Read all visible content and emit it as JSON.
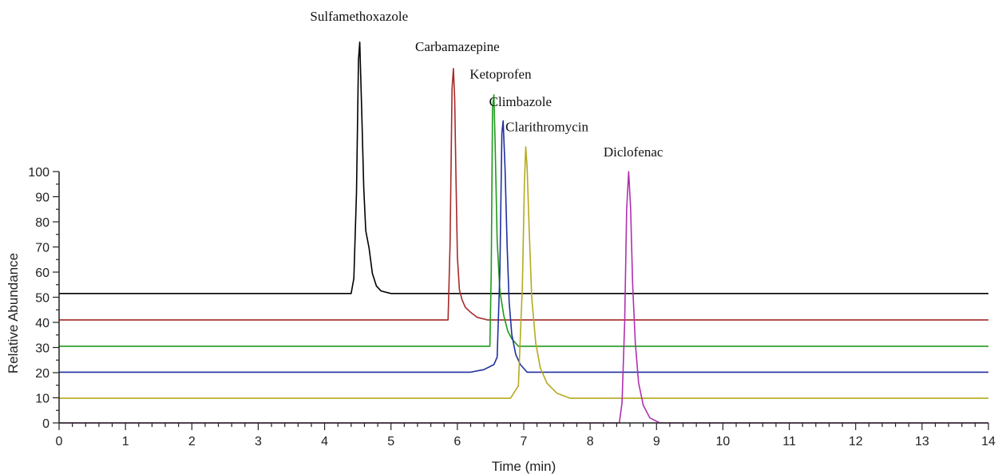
{
  "chart_data": {
    "type": "line",
    "xlabel": "Time (min)",
    "ylabel": "Relative Abundance",
    "xlim": [
      0,
      14
    ],
    "ylim": [
      0,
      100
    ],
    "x_ticks": [
      0,
      1,
      2,
      3,
      4,
      5,
      6,
      7,
      8,
      9,
      10,
      11,
      12,
      13,
      14
    ],
    "y_ticks": [
      0,
      10,
      20,
      30,
      40,
      50,
      60,
      70,
      80,
      90,
      100
    ],
    "grid": false,
    "series": [
      {
        "name": "Sulfamethoxazole",
        "color": "#000000",
        "baseline": 51.5,
        "x": [
          0,
          4.4,
          4.44,
          4.48,
          4.51,
          4.53,
          4.56,
          4.59,
          4.62,
          4.67,
          4.72,
          4.78,
          4.85,
          5.0,
          14
        ],
        "delta": [
          0,
          0,
          6,
          40,
          93,
          100,
          72,
          42,
          25,
          18,
          8,
          3,
          1,
          0,
          0
        ]
      },
      {
        "name": "Carbamazepine",
        "color": "#a52a2a",
        "baseline": 41.0,
        "x": [
          0,
          5.86,
          5.89,
          5.92,
          5.94,
          5.96,
          5.98,
          6.0,
          6.03,
          6.07,
          6.12,
          6.2,
          6.3,
          6.45,
          14
        ],
        "delta": [
          0,
          0,
          30,
          92,
          100,
          88,
          55,
          25,
          12,
          8,
          5,
          3,
          1,
          0,
          0
        ]
      },
      {
        "name": "Ketoprofen",
        "color": "#1e9a1e",
        "baseline": 30.5,
        "x": [
          0,
          6.49,
          6.51,
          6.53,
          6.55,
          6.57,
          6.6,
          6.64,
          6.7,
          6.76,
          6.82,
          6.92,
          14
        ],
        "delta": [
          0,
          0,
          30,
          95,
          100,
          80,
          42,
          22,
          12,
          6,
          3,
          0,
          0
        ]
      },
      {
        "name": "Climbazole",
        "color": "#1f2f9f",
        "baseline": 20.2,
        "x": [
          0,
          6.2,
          6.4,
          6.55,
          6.6,
          6.64,
          6.67,
          6.69,
          6.72,
          6.75,
          6.78,
          6.82,
          6.88,
          6.95,
          7.05,
          14
        ],
        "delta": [
          0,
          0,
          1,
          3,
          6,
          40,
          95,
          100,
          80,
          50,
          28,
          15,
          7,
          3,
          0,
          0
        ]
      },
      {
        "name": "Clarithromycin",
        "color": "#b5aa1e",
        "baseline": 9.8,
        "x": [
          0,
          6.8,
          6.92,
          6.98,
          7.01,
          7.03,
          7.05,
          7.08,
          7.12,
          7.18,
          7.25,
          7.35,
          7.5,
          7.7,
          14
        ],
        "delta": [
          0,
          0,
          5,
          45,
          85,
          100,
          92,
          68,
          40,
          22,
          12,
          6,
          2,
          0,
          0
        ]
      },
      {
        "name": "Diclofenac",
        "color": "#b030b0",
        "baseline": 0,
        "x": [
          0,
          8.44,
          8.48,
          8.52,
          8.55,
          8.58,
          8.61,
          8.64,
          8.68,
          8.73,
          8.8,
          8.9,
          9.05,
          14
        ],
        "delta": [
          0,
          0,
          8,
          40,
          85,
          100,
          85,
          55,
          32,
          16,
          7,
          2,
          0,
          0
        ]
      }
    ],
    "annotations": [
      {
        "text": "Sulfamethoxazole",
        "x": 4.52,
        "y": 160
      },
      {
        "text": "Carbamazepine",
        "x": 6.0,
        "y": 148
      },
      {
        "text": "Ketoprofen",
        "x": 6.65,
        "y": 137
      },
      {
        "text": "Climbazole",
        "x": 6.95,
        "y": 126
      },
      {
        "text": "Clarithromycin",
        "x": 7.35,
        "y": 116
      },
      {
        "text": "Diclofenac",
        "x": 8.65,
        "y": 106
      }
    ]
  }
}
